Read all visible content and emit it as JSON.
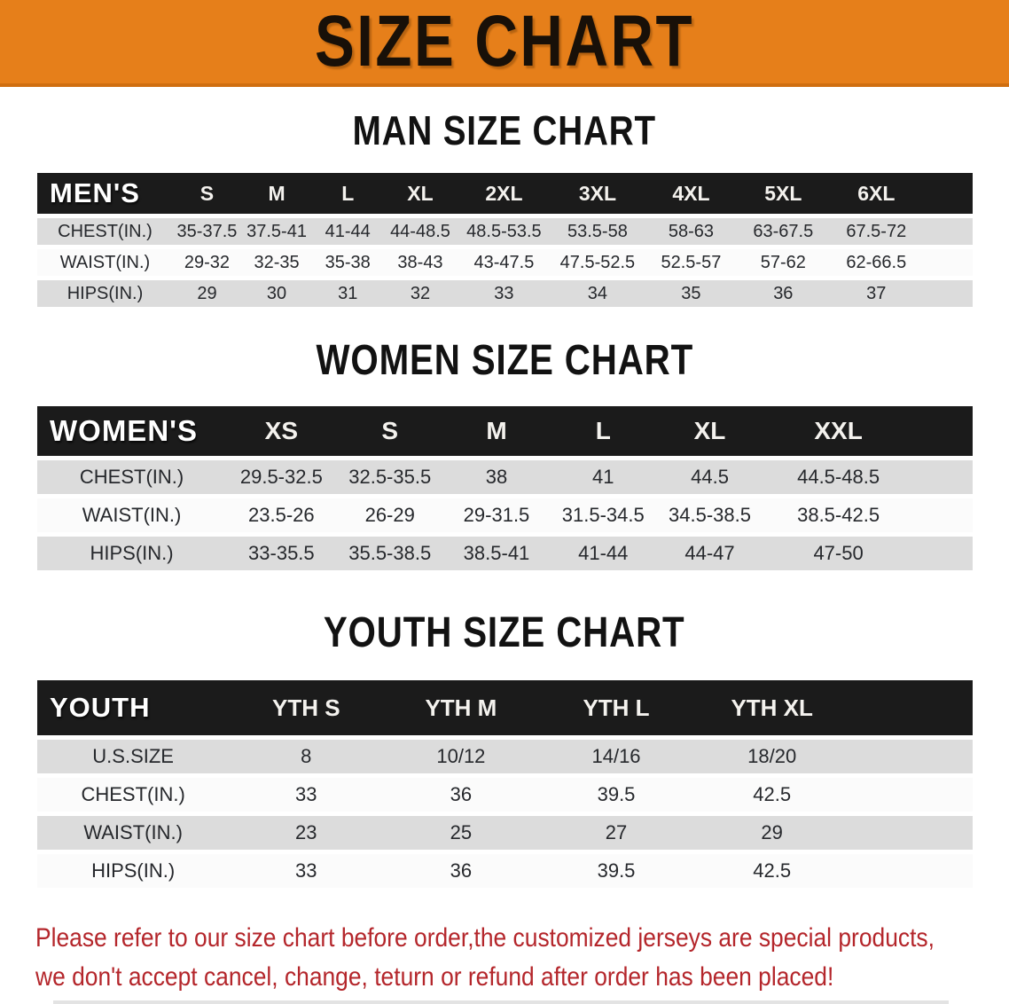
{
  "banner": {
    "title": "SIZE CHART"
  },
  "sections": [
    {
      "id": "men",
      "heading": "MAN SIZE CHART",
      "header_label": "MEN'S",
      "columns": [
        "S",
        "M",
        "L",
        "XL",
        "2XL",
        "3XL",
        "4XL",
        "5XL",
        "6XL"
      ],
      "rows": [
        {
          "label": "CHEST(IN.)",
          "values": [
            "35-37.5",
            "37.5-41",
            "41-44",
            "44-48.5",
            "48.5-53.5",
            "53.5-58",
            "58-63",
            "63-67.5",
            "67.5-72"
          ]
        },
        {
          "label": "WAIST(IN.)",
          "values": [
            "29-32",
            "32-35",
            "35-38",
            "38-43",
            "43-47.5",
            "47.5-52.5",
            "52.5-57",
            "57-62",
            "62-66.5"
          ]
        },
        {
          "label": "HIPS(IN.)",
          "values": [
            "29",
            "30",
            "31",
            "32",
            "33",
            "34",
            "35",
            "36",
            "37"
          ]
        }
      ]
    },
    {
      "id": "women",
      "heading": "WOMEN SIZE CHART",
      "header_label": "WOMEN'S",
      "columns": [
        "XS",
        "S",
        "M",
        "L",
        "XL",
        "XXL"
      ],
      "rows": [
        {
          "label": "CHEST(IN.)",
          "values": [
            "29.5-32.5",
            "32.5-35.5",
            "38",
            "41",
            "44.5",
            "44.5-48.5"
          ]
        },
        {
          "label": "WAIST(IN.)",
          "values": [
            "23.5-26",
            "26-29",
            "29-31.5",
            "31.5-34.5",
            "34.5-38.5",
            "38.5-42.5"
          ]
        },
        {
          "label": "HIPS(IN.)",
          "values": [
            "33-35.5",
            "35.5-38.5",
            "38.5-41",
            "41-44",
            "44-47",
            "47-50"
          ]
        }
      ]
    },
    {
      "id": "youth",
      "heading": "YOUTH SIZE CHART",
      "header_label": "YOUTH",
      "columns": [
        "YTH S",
        "YTH M",
        "YTH L",
        "YTH XL"
      ],
      "rows": [
        {
          "label": "U.S.SIZE",
          "values": [
            "8",
            "10/12",
            "14/16",
            "18/20"
          ]
        },
        {
          "label": "CHEST(IN.)",
          "values": [
            "33",
            "36",
            "39.5",
            "42.5"
          ]
        },
        {
          "label": "WAIST(IN.)",
          "values": [
            "23",
            "25",
            "27",
            "29"
          ]
        },
        {
          "label": "HIPS(IN.)",
          "values": [
            "33",
            "36",
            "39.5",
            "42.5"
          ]
        }
      ]
    }
  ],
  "footer": {
    "line1": "Please refer to our size chart before order,the customized jerseys are special products,",
    "line2": "we don't accept cancel, change, teturn or refund after order has been placed!"
  },
  "colors": {
    "banner_bg": "#e67f1a",
    "banner_edge": "#cf6e10",
    "header_bar": "#1b1b1b",
    "row_gray": "#dcdcdc",
    "row_white": "#fbfbfb",
    "footer_red": "#b4262b"
  }
}
